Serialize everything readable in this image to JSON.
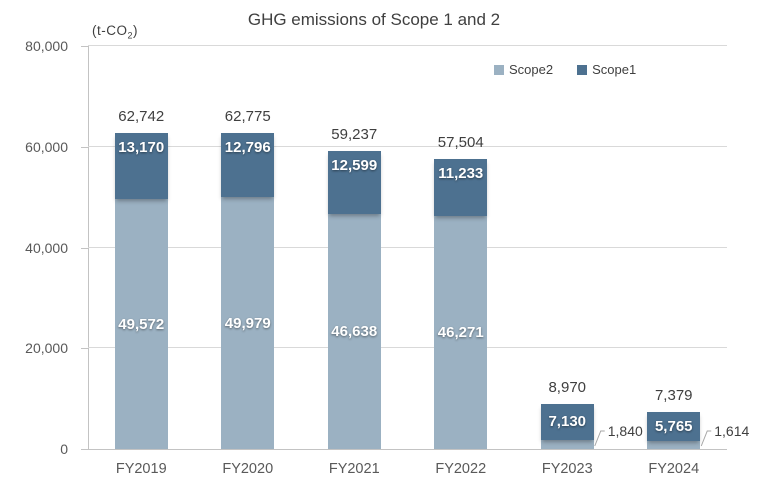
{
  "chart_data": {
    "type": "bar",
    "stacked": true,
    "title": "GHG emissions of Scope 1 and 2",
    "unit_prefix": "(t-CO",
    "unit_sub": "2",
    "unit_suffix": ")",
    "categories": [
      "FY2019",
      "FY2020",
      "FY2021",
      "FY2022",
      "FY2023",
      "FY2024"
    ],
    "series": [
      {
        "name": "Scope2",
        "color": "#9bb1c2",
        "values": [
          49572,
          49979,
          46638,
          46271,
          1840,
          1614
        ],
        "label_placement": [
          "inside",
          "inside",
          "inside",
          "inside",
          "callout",
          "callout"
        ]
      },
      {
        "name": "Scope1",
        "color": "#4d7190",
        "values": [
          13170,
          12796,
          12599,
          11233,
          7130,
          5765
        ],
        "label_placement": [
          "inside",
          "inside",
          "inside",
          "inside",
          "inside",
          "inside"
        ]
      }
    ],
    "totals": [
      62742,
      62775,
      59237,
      57504,
      8970,
      7379
    ],
    "ylim": [
      0,
      80000
    ],
    "ytick_interval": 20000,
    "ytick_labels": [
      "0",
      "20,000",
      "40,000",
      "60,000",
      "80,000"
    ],
    "grid": "horizontal",
    "legend_position": "top-right",
    "colors": {
      "gridline": "#d9d9d9",
      "axis_line": "#c3c3c3",
      "leader_line": "#a6a6a6",
      "axis_text": "#595959",
      "label_text": "#3f3f3f"
    }
  }
}
